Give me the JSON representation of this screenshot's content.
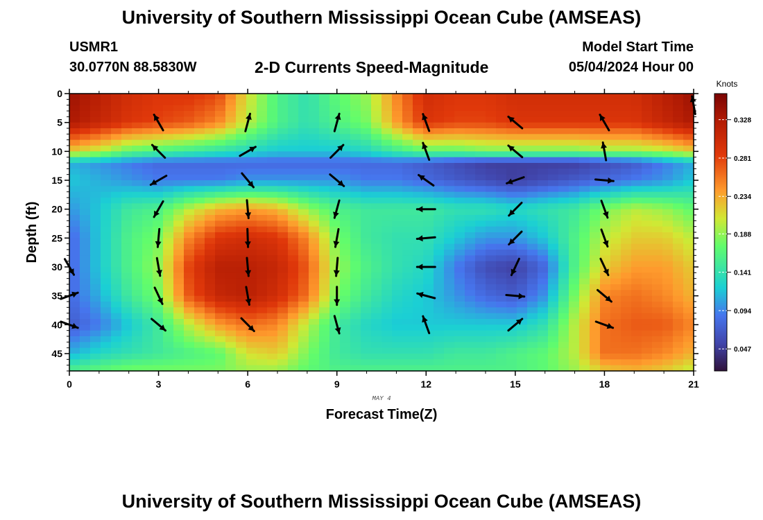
{
  "page": {
    "title": "University of Southern Mississippi Ocean Cube (AMSEAS)",
    "footer_title": "University of Southern Mississippi Ocean Cube (AMSEAS)",
    "station": "USMR1",
    "coordinates": "30.0770N  88.5830W",
    "subtitle": "2-D Currents Speed-Magnitude",
    "model_start_label": "Model Start Time",
    "model_start_value": "05/04/2024 Hour 00"
  },
  "chart_data": {
    "type": "heatmap",
    "title": "2-D Currents Speed-Magnitude",
    "xlabel": "Forecast Time(Z)",
    "ylabel": "Depth (ft)",
    "date_label": "MAY 4",
    "xlim": [
      0,
      21
    ],
    "ylim": [
      0,
      48
    ],
    "y_inverted": true,
    "x_ticks": [
      0,
      3,
      6,
      9,
      12,
      15,
      18,
      21
    ],
    "y_ticks": [
      0,
      5,
      10,
      15,
      20,
      25,
      30,
      35,
      40,
      45
    ],
    "colorbar": {
      "label": "Knots",
      "min": 0.02,
      "max": 0.36,
      "ticks": [
        "0.328",
        "0.281",
        "0.234",
        "0.188",
        "0.141",
        "0.094",
        "0.047"
      ]
    },
    "speed_field_knots": {
      "depths_ft": [
        0,
        5,
        10,
        12,
        15,
        20,
        25,
        30,
        35,
        40,
        45,
        48
      ],
      "times_h": [
        0,
        1,
        2,
        3,
        4,
        5,
        6,
        7,
        8,
        9,
        10,
        11,
        12,
        13,
        14,
        15,
        16,
        17,
        18,
        19,
        20,
        21
      ],
      "values": [
        [
          0.34,
          0.32,
          0.3,
          0.29,
          0.29,
          0.28,
          0.21,
          0.16,
          0.14,
          0.17,
          0.19,
          0.25,
          0.3,
          0.29,
          0.29,
          0.3,
          0.3,
          0.3,
          0.3,
          0.3,
          0.32,
          0.34
        ],
        [
          0.33,
          0.31,
          0.29,
          0.28,
          0.27,
          0.25,
          0.2,
          0.16,
          0.14,
          0.16,
          0.18,
          0.24,
          0.29,
          0.28,
          0.28,
          0.29,
          0.29,
          0.29,
          0.29,
          0.29,
          0.31,
          0.33
        ],
        [
          0.22,
          0.2,
          0.17,
          0.16,
          0.15,
          0.14,
          0.13,
          0.12,
          0.12,
          0.12,
          0.13,
          0.15,
          0.17,
          0.17,
          0.18,
          0.18,
          0.18,
          0.18,
          0.19,
          0.19,
          0.2,
          0.22
        ],
        [
          0.11,
          0.1,
          0.09,
          0.08,
          0.08,
          0.08,
          0.08,
          0.08,
          0.08,
          0.08,
          0.08,
          0.08,
          0.07,
          0.06,
          0.05,
          0.05,
          0.05,
          0.05,
          0.06,
          0.07,
          0.09,
          0.11
        ],
        [
          0.12,
          0.11,
          0.1,
          0.09,
          0.09,
          0.09,
          0.1,
          0.1,
          0.1,
          0.1,
          0.09,
          0.09,
          0.08,
          0.07,
          0.06,
          0.05,
          0.06,
          0.07,
          0.08,
          0.09,
          0.1,
          0.12
        ],
        [
          0.1,
          0.12,
          0.15,
          0.16,
          0.2,
          0.23,
          0.24,
          0.23,
          0.19,
          0.16,
          0.15,
          0.15,
          0.15,
          0.14,
          0.14,
          0.13,
          0.14,
          0.15,
          0.18,
          0.2,
          0.19,
          0.17
        ],
        [
          0.08,
          0.12,
          0.16,
          0.18,
          0.25,
          0.29,
          0.3,
          0.29,
          0.25,
          0.18,
          0.15,
          0.14,
          0.14,
          0.12,
          0.1,
          0.1,
          0.12,
          0.16,
          0.2,
          0.22,
          0.22,
          0.2
        ],
        [
          0.08,
          0.12,
          0.16,
          0.19,
          0.28,
          0.32,
          0.32,
          0.31,
          0.27,
          0.19,
          0.16,
          0.14,
          0.13,
          0.09,
          0.06,
          0.05,
          0.08,
          0.16,
          0.22,
          0.24,
          0.24,
          0.22
        ],
        [
          0.08,
          0.11,
          0.15,
          0.18,
          0.27,
          0.31,
          0.32,
          0.3,
          0.26,
          0.18,
          0.15,
          0.13,
          0.12,
          0.1,
          0.08,
          0.07,
          0.1,
          0.18,
          0.25,
          0.26,
          0.25,
          0.23
        ],
        [
          0.07,
          0.09,
          0.12,
          0.15,
          0.2,
          0.24,
          0.26,
          0.25,
          0.2,
          0.15,
          0.13,
          0.12,
          0.12,
          0.12,
          0.12,
          0.12,
          0.14,
          0.2,
          0.26,
          0.27,
          0.27,
          0.25
        ],
        [
          0.11,
          0.13,
          0.14,
          0.15,
          0.16,
          0.17,
          0.21,
          0.22,
          0.18,
          0.15,
          0.14,
          0.14,
          0.14,
          0.15,
          0.15,
          0.16,
          0.17,
          0.2,
          0.26,
          0.26,
          0.25,
          0.23
        ],
        [
          0.16,
          0.17,
          0.18,
          0.18,
          0.18,
          0.18,
          0.19,
          0.19,
          0.17,
          0.16,
          0.16,
          0.16,
          0.16,
          0.16,
          0.16,
          0.16,
          0.17,
          0.19,
          0.22,
          0.23,
          0.22,
          0.2
        ]
      ]
    },
    "vectors": [
      {
        "t": 0,
        "d": 30,
        "angle": -60
      },
      {
        "t": 0,
        "d": 35,
        "angle": 20
      },
      {
        "t": 0,
        "d": 40,
        "angle": -20
      },
      {
        "t": 3,
        "d": 5,
        "angle": 120
      },
      {
        "t": 3,
        "d": 10,
        "angle": 135
      },
      {
        "t": 3,
        "d": 15,
        "angle": 210
      },
      {
        "t": 3,
        "d": 20,
        "angle": 240
      },
      {
        "t": 3,
        "d": 25,
        "angle": 265
      },
      {
        "t": 3,
        "d": 30,
        "angle": 280
      },
      {
        "t": 3,
        "d": 35,
        "angle": 295
      },
      {
        "t": 3,
        "d": 40,
        "angle": 320
      },
      {
        "t": 6,
        "d": 5,
        "angle": 75
      },
      {
        "t": 6,
        "d": 10,
        "angle": 30
      },
      {
        "t": 6,
        "d": 15,
        "angle": 310
      },
      {
        "t": 6,
        "d": 20,
        "angle": 275
      },
      {
        "t": 6,
        "d": 25,
        "angle": 272
      },
      {
        "t": 6,
        "d": 30,
        "angle": 275
      },
      {
        "t": 6,
        "d": 35,
        "angle": 280
      },
      {
        "t": 6,
        "d": 40,
        "angle": 315
      },
      {
        "t": 9,
        "d": 5,
        "angle": 75
      },
      {
        "t": 9,
        "d": 10,
        "angle": 45
      },
      {
        "t": 9,
        "d": 15,
        "angle": 320
      },
      {
        "t": 9,
        "d": 20,
        "angle": 255
      },
      {
        "t": 9,
        "d": 25,
        "angle": 260
      },
      {
        "t": 9,
        "d": 30,
        "angle": 265
      },
      {
        "t": 9,
        "d": 35,
        "angle": 270
      },
      {
        "t": 9,
        "d": 40,
        "angle": 285
      },
      {
        "t": 12,
        "d": 5,
        "angle": 110
      },
      {
        "t": 12,
        "d": 10,
        "angle": 110
      },
      {
        "t": 12,
        "d": 15,
        "angle": 145
      },
      {
        "t": 12,
        "d": 20,
        "angle": 180
      },
      {
        "t": 12,
        "d": 25,
        "angle": 185
      },
      {
        "t": 12,
        "d": 30,
        "angle": 180
      },
      {
        "t": 12,
        "d": 35,
        "angle": 165
      },
      {
        "t": 12,
        "d": 40,
        "angle": 110
      },
      {
        "t": 15,
        "d": 5,
        "angle": 140
      },
      {
        "t": 15,
        "d": 10,
        "angle": 140
      },
      {
        "t": 15,
        "d": 15,
        "angle": 200
      },
      {
        "t": 15,
        "d": 20,
        "angle": 225
      },
      {
        "t": 15,
        "d": 25,
        "angle": 225
      },
      {
        "t": 15,
        "d": 30,
        "angle": 245
      },
      {
        "t": 15,
        "d": 35,
        "angle": -5
      },
      {
        "t": 15,
        "d": 40,
        "angle": 40
      },
      {
        "t": 18,
        "d": 5,
        "angle": 120
      },
      {
        "t": 18,
        "d": 10,
        "angle": 100
      },
      {
        "t": 18,
        "d": 15,
        "angle": -5
      },
      {
        "t": 18,
        "d": 20,
        "angle": 290
      },
      {
        "t": 18,
        "d": 25,
        "angle": 290
      },
      {
        "t": 18,
        "d": 30,
        "angle": 295
      },
      {
        "t": 18,
        "d": 35,
        "angle": 320
      },
      {
        "t": 18,
        "d": 40,
        "angle": 340
      },
      {
        "t": 21,
        "d": 2,
        "angle": 100
      }
    ]
  },
  "colors": {
    "background": "#ffffff",
    "frame": "#000000",
    "arrow": "#000000"
  }
}
